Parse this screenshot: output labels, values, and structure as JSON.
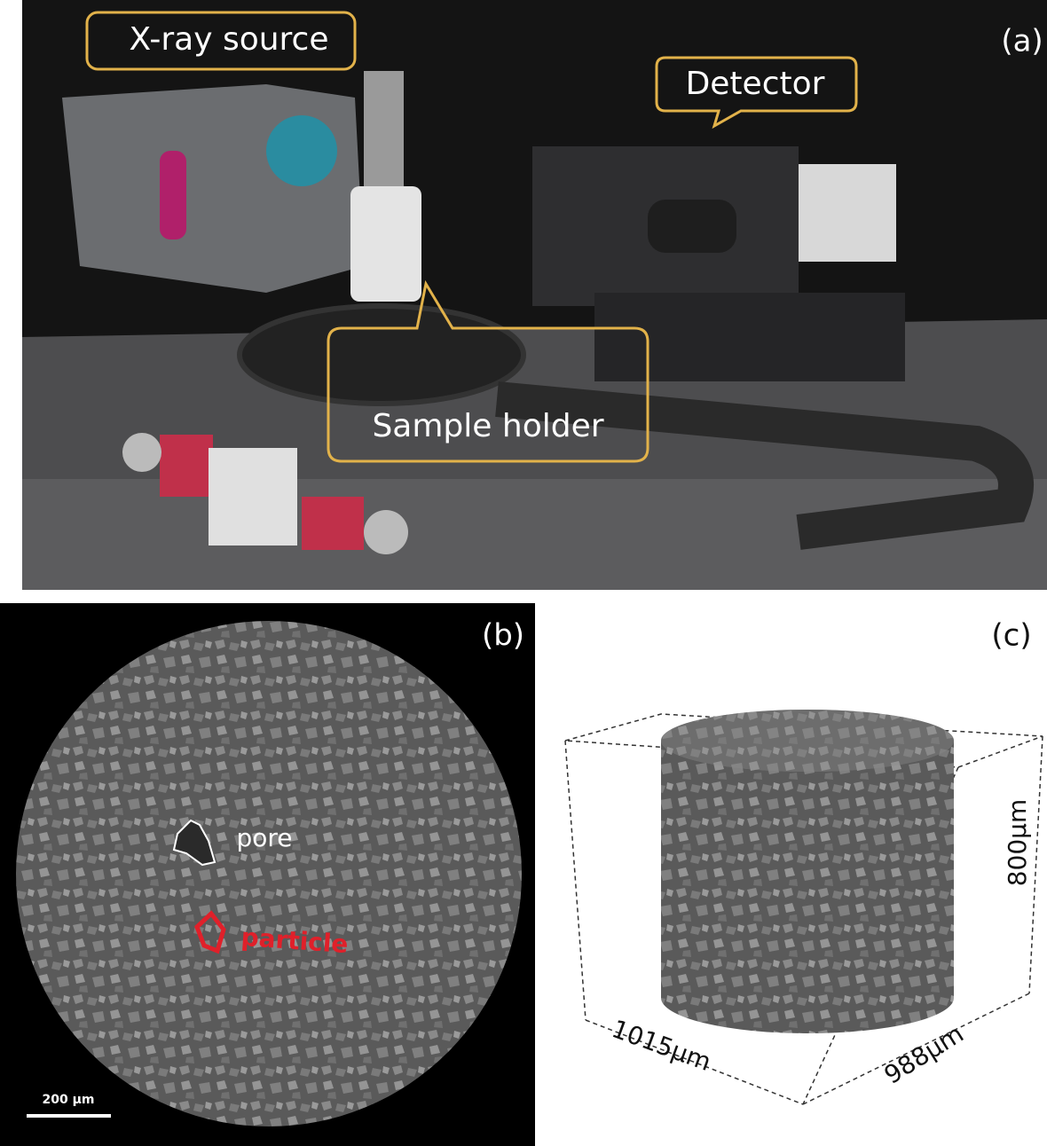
{
  "panels": [
    {
      "label": "(a)",
      "callouts": [
        "X-ray source",
        "Detector",
        "Sample holder"
      ]
    },
    {
      "label": "(b)",
      "annotations": [
        "pore",
        "particle"
      ],
      "scale_bar": "200 μm"
    },
    {
      "label": "(c)",
      "dimensions": [
        "800μm",
        "1015μm",
        "988μm"
      ]
    }
  ]
}
